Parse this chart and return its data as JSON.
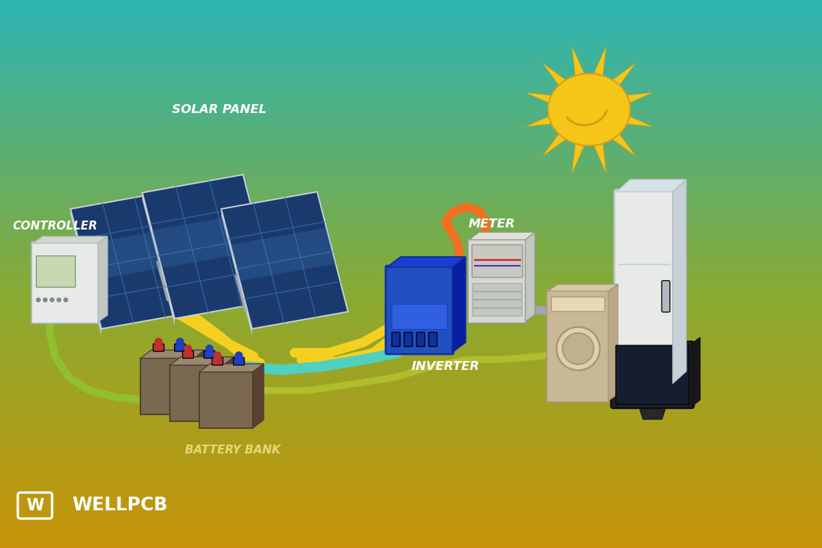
{
  "bg_top_color": "#2DB5B5",
  "bg_bottom_color": "#C8940A",
  "bg_mid_color": "#8BAA30",
  "labels": {
    "solar_panel": "SOLAR PANEL",
    "controller": "CONTROLLER",
    "meter": "METER",
    "inverter": "INVERTER",
    "battery_bank": "BATTERY BANK",
    "brand": "WELLPCB"
  },
  "label_color": "#FFFFFF",
  "label_fontsize": 13,
  "sun_color": "#F5C518",
  "sun_dark": "#D4A017",
  "panel_blue_dark": "#1A3A6E",
  "panel_frame": "#C8D0D8",
  "wire_yellow": "#F5D020",
  "wire_orange": "#F07020",
  "wire_teal": "#50D0C0",
  "wire_gray": "#A0A8B0",
  "wire_green": "#90C030",
  "controller_color": "#E8EAE8",
  "battery_color": "#7A6850",
  "battery_top": "#9A8870",
  "inverter_color": "#2050C0",
  "meter_color": "#D8D8D0",
  "fridge_color": "#E8EAE8",
  "washer_color": "#C8B898",
  "tv_color": "#303030"
}
